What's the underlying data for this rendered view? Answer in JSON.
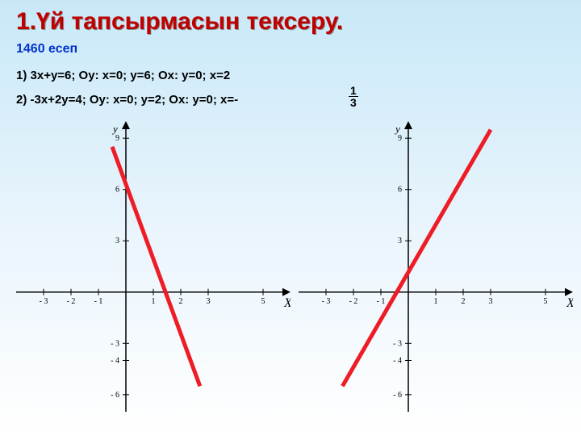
{
  "title": "1.Үй тапсырмасын тексеру.",
  "subtitle": "1460 есеп",
  "eq1": "1)  3x+y=6;      Oy: x=0; y=6;  Ox: y=0; x=2",
  "eq2": "2) -3x+2y=4;   Oy: x=0; y=2;  Ox: y=0; x=-",
  "frac_num": "1",
  "frac_den": "3",
  "axis_label_x": "X",
  "axis_label_y": "y",
  "chart_left": {
    "type": "line",
    "x_ticks": [
      -3,
      -2,
      -1,
      1,
      2,
      3,
      5
    ],
    "y_ticks_pos": [
      3,
      6,
      9
    ],
    "y_ticks_neg": [
      -3,
      -4,
      -6
    ],
    "xlim": [
      -4,
      6
    ],
    "ylim": [
      -7,
      10
    ],
    "line_points": [
      [
        -0.5,
        8.5
      ],
      [
        2.7,
        -5.5
      ]
    ],
    "line_color": "#ee1c25",
    "line_width": 5,
    "axis_color": "#000000",
    "tick_color": "#000000",
    "font_size_ticks": 10,
    "font_family": "serif"
  },
  "chart_right": {
    "type": "line",
    "x_ticks": [
      -3,
      -2,
      -1,
      1,
      2,
      3,
      5
    ],
    "y_ticks_pos": [
      3,
      6,
      9
    ],
    "y_ticks_neg": [
      -3,
      -4,
      -6
    ],
    "xlim": [
      -4,
      6
    ],
    "ylim": [
      -7,
      10
    ],
    "line_points": [
      [
        -2.4,
        -5.5
      ],
      [
        3.0,
        9.5
      ]
    ],
    "line_color": "#ee1c25",
    "line_width": 5,
    "axis_color": "#000000",
    "tick_color": "#000000",
    "font_size_ticks": 10,
    "font_family": "serif"
  }
}
